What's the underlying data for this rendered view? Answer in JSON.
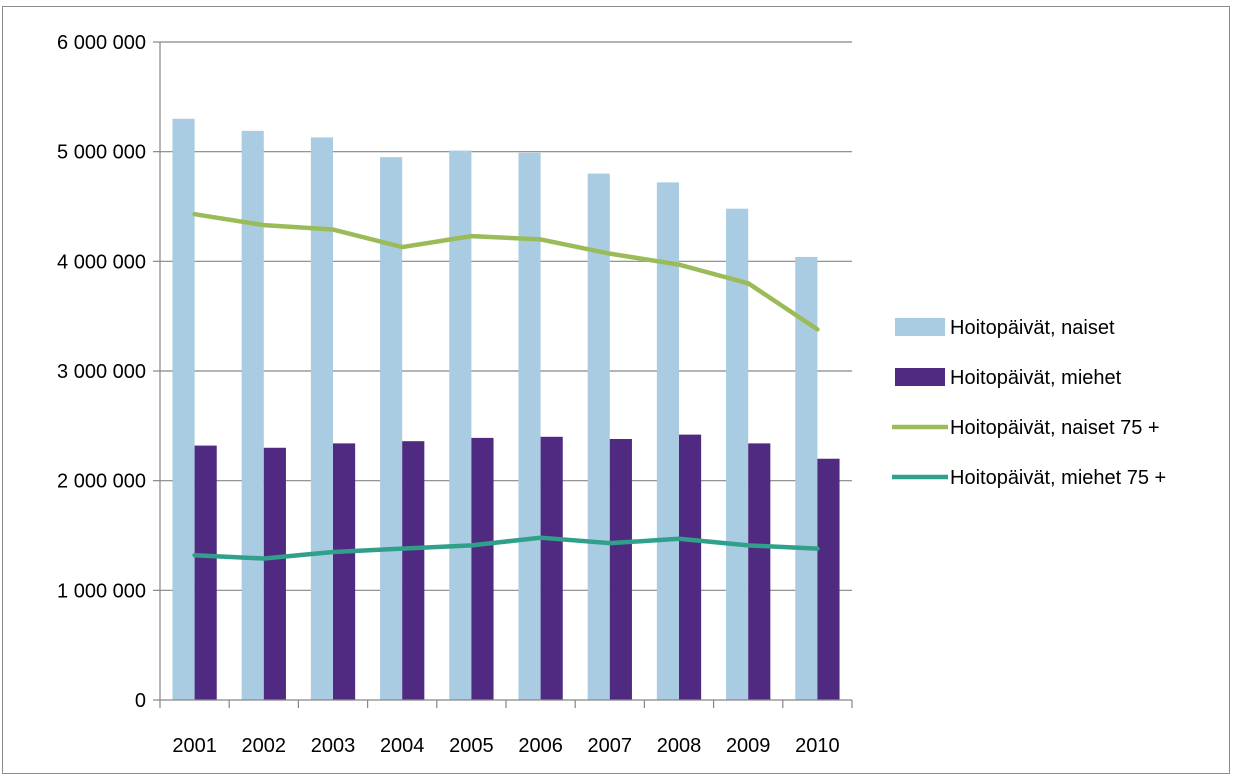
{
  "chart_data": {
    "type": "bar",
    "categories": [
      "2001",
      "2002",
      "2003",
      "2004",
      "2005",
      "2006",
      "2007",
      "2008",
      "2009",
      "2010"
    ],
    "series": [
      {
        "name": "Hoitopäivät, naiset",
        "kind": "bar",
        "color": "#a9cce3",
        "values": [
          5300000,
          5190000,
          5130000,
          4950000,
          5010000,
          4990000,
          4800000,
          4720000,
          4480000,
          4040000
        ]
      },
      {
        "name": "Hoitopäivät, miehet",
        "kind": "bar",
        "color": "#4f2a80",
        "values": [
          2320000,
          2300000,
          2340000,
          2360000,
          2390000,
          2400000,
          2380000,
          2420000,
          2340000,
          2200000
        ]
      },
      {
        "name": "Hoitopäivät, naiset 75 +",
        "kind": "line",
        "color": "#9bbb59",
        "values": [
          4430000,
          4330000,
          4290000,
          4130000,
          4230000,
          4200000,
          4070000,
          3970000,
          3800000,
          3380000
        ]
      },
      {
        "name": "Hoitopäivät, miehet 75 +",
        "kind": "line",
        "color": "#31a08a",
        "values": [
          1320000,
          1290000,
          1350000,
          1380000,
          1410000,
          1480000,
          1430000,
          1470000,
          1410000,
          1380000
        ]
      }
    ],
    "ylim": [
      0,
      6000000
    ],
    "yticks": [
      0,
      1000000,
      2000000,
      3000000,
      4000000,
      5000000,
      6000000
    ],
    "ytick_labels": [
      "0",
      "1 000 000",
      "2 000 000",
      "3 000 000",
      "4 000 000",
      "5 000 000",
      "6 000 000"
    ],
    "grid": true,
    "legend_position": "right",
    "title": "",
    "xlabel": "",
    "ylabel": ""
  }
}
